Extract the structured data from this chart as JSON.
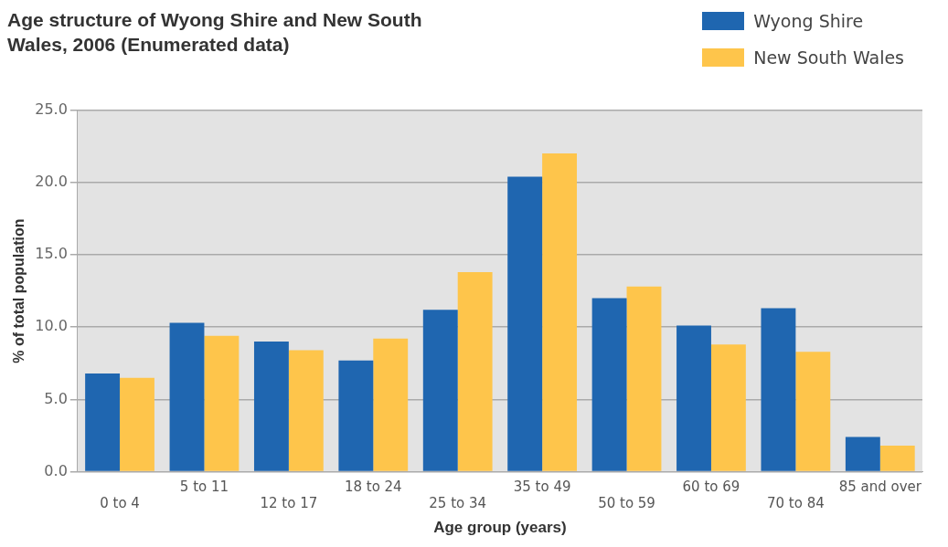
{
  "chart_data": {
    "type": "bar",
    "title": "Age structure of Wyong Shire and New South Wales, 2006 (Enumerated data)",
    "xlabel": "Age group (years)",
    "ylabel": "% of total population",
    "categories": [
      "0 to 4",
      "5 to 11",
      "12 to 17",
      "18 to 24",
      "25 to 34",
      "35 to 49",
      "50 to 59",
      "60 to 69",
      "70 to 84",
      "85 and over"
    ],
    "series": [
      {
        "name": "Wyong Shire",
        "color": "#1f66b0",
        "values": [
          6.8,
          10.3,
          9.0,
          7.7,
          11.2,
          20.4,
          12.0,
          10.1,
          11.3,
          2.4
        ]
      },
      {
        "name": "New South Wales",
        "color": "#fec54b",
        "values": [
          6.5,
          9.4,
          8.4,
          9.2,
          13.8,
          22.0,
          12.8,
          8.8,
          8.3,
          1.8
        ]
      }
    ],
    "ylim": [
      0,
      25
    ],
    "yticks": [
      {
        "value": 0,
        "label": "0.0"
      },
      {
        "value": 5,
        "label": "5.0"
      },
      {
        "value": 10,
        "label": "10.0"
      },
      {
        "value": 15,
        "label": "15.0"
      },
      {
        "value": 20,
        "label": "20.0"
      },
      {
        "value": 25,
        "label": "25.0"
      }
    ],
    "grid": "y",
    "legend": "top right"
  }
}
